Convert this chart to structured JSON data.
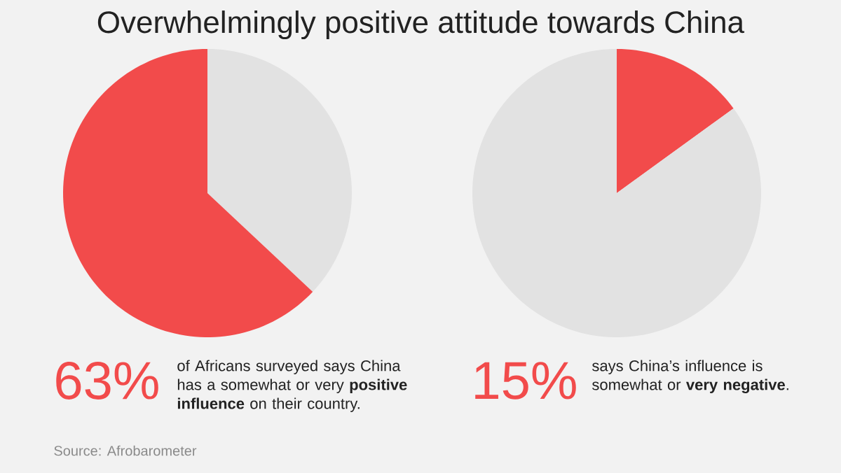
{
  "chart_data": [
    {
      "type": "pie",
      "title": "Overwhelmingly positive attitude towards China",
      "categories": [
        null,
        null
      ],
      "values": [
        37,
        63
      ],
      "colors": [
        "#e2e2e2",
        "#f24b4b"
      ],
      "annotations": [
        "63%",
        "of Africans surveyed says China has a somewhat or very **positive influence** on their country.",
        "Source: Afrobarometer"
      ]
    },
    {
      "type": "pie",
      "categories": [
        null,
        null
      ],
      "values": [
        15,
        85
      ],
      "colors": [
        "#f24b4b",
        "#e2e2e2"
      ],
      "annotations": [
        "15%",
        "says China’s influence is somewhat or **very negative**."
      ]
    }
  ]
}
